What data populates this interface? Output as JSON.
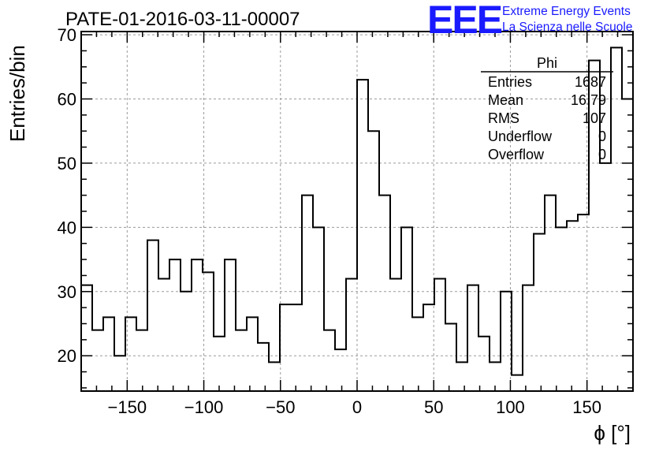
{
  "chart_data": {
    "type": "histogram",
    "title": "PATE-01-2016-03-11-00007",
    "xlabel": "ϕ [°]",
    "ylabel": "Entries/bin",
    "xlim": [
      -180,
      180
    ],
    "ylim": [
      14.5,
      70.5
    ],
    "x_ticks": [
      -150,
      -100,
      -50,
      0,
      50,
      100,
      150
    ],
    "y_ticks": [
      20,
      30,
      40,
      50,
      60,
      70
    ],
    "grid": true,
    "bin_width": 7.2,
    "values": [
      31,
      24,
      26,
      20,
      26,
      24,
      38,
      32,
      35,
      30,
      35,
      33,
      23,
      35,
      24,
      26,
      22,
      19,
      28,
      28,
      45,
      40,
      24,
      21,
      32,
      63,
      55,
      45,
      32,
      40,
      26,
      28,
      32,
      25,
      19,
      31,
      23,
      19,
      30,
      17,
      31,
      39,
      45,
      40,
      41,
      42,
      66,
      50,
      68,
      60
    ],
    "stats": {
      "name": "Phi",
      "rows": [
        {
          "label": "Entries",
          "value": "1687"
        },
        {
          "label": "Mean",
          "value": "16.79"
        },
        {
          "label": "RMS",
          "value": "107"
        },
        {
          "label": "Underflow",
          "value": "0"
        },
        {
          "label": "Overflow",
          "value": "0"
        }
      ]
    }
  },
  "logo": {
    "mark": "EEE",
    "line1": "Extreme Energy Events",
    "line2": "La Scienza nelle Scuole"
  },
  "colors": {
    "line": "#000000",
    "grid": "#9a9a9a",
    "logo": "#1a1aff"
  }
}
